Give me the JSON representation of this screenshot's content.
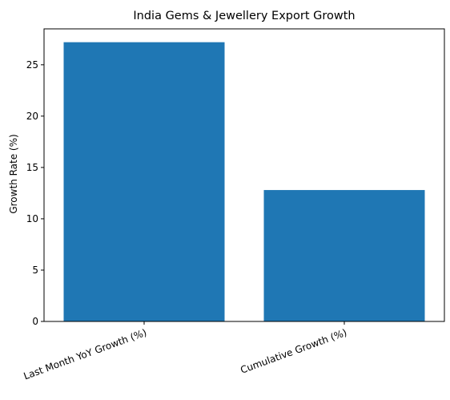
{
  "chart_data": {
    "type": "bar",
    "title": "India Gems & Jewellery Export Growth",
    "xlabel": "",
    "ylabel": "Growth Rate (%)",
    "categories": [
      "Last Month YoY Growth (%)",
      "Cumulative Growth (%)"
    ],
    "values": [
      27.2,
      12.8
    ],
    "ylim": [
      0,
      28.5
    ],
    "yticks": [
      0,
      5,
      10,
      15,
      20,
      25
    ],
    "bar_color": "#1f77b4",
    "grid": false,
    "legend": "none"
  }
}
